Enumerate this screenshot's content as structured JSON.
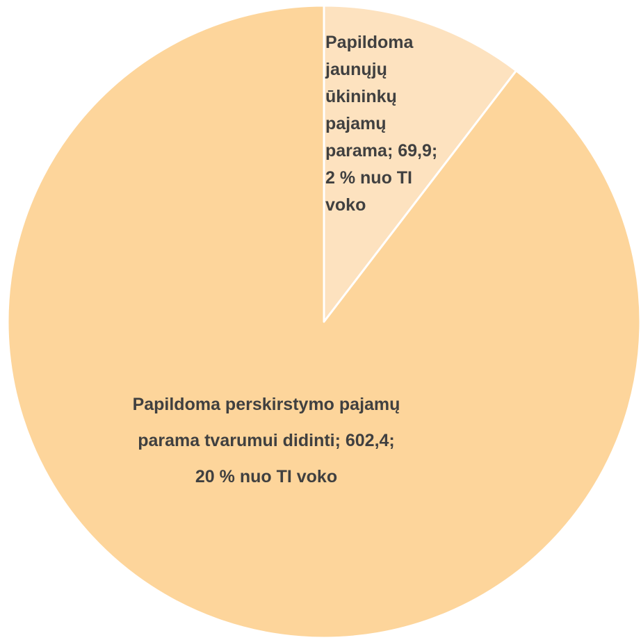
{
  "chart_data": {
    "type": "pie",
    "categories": [
      "Papildoma jaunųjų ūkininkų pajamų parama",
      "Papildoma perskirstymo pajamų parama tvarumui didinti"
    ],
    "values": [
      69.9,
      602.4
    ],
    "value_labels": [
      "Papildoma jaunųjų ūkininkų pajamų parama; 69,9; 2 % nuo TI voko",
      "Papildoma perskirstymo pajamų parama tvarumui didinti; 602,4; 20 % nuo TI voko"
    ],
    "colors": [
      "#fde2bf",
      "#fdd59b"
    ]
  }
}
